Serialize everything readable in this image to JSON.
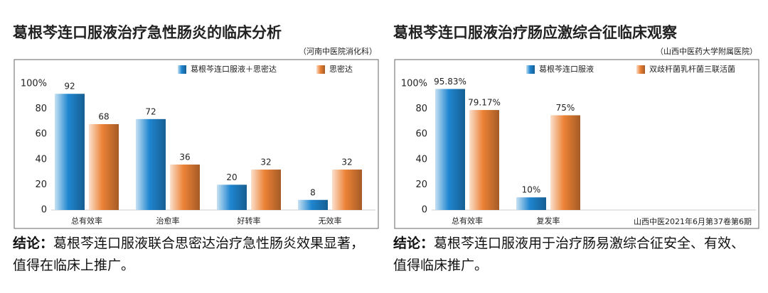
{
  "chart_data": [
    {
      "type": "bar",
      "title": "葛根芩连口服液治疗急性肠炎的临床分析",
      "source": "（河南中医院消化科）",
      "categories": [
        "总有效率",
        "治愈率",
        "好转率",
        "无效率"
      ],
      "series": [
        {
          "name": "葛根芩连口服液＋思密达",
          "color": "#1f86d0",
          "values": [
            92,
            72,
            20,
            8
          ]
        },
        {
          "name": "思密达",
          "color": "#ec8236",
          "values": [
            68,
            36,
            32,
            32
          ]
        }
      ],
      "ylim": [
        0,
        100
      ],
      "yticks": [
        0,
        20,
        40,
        60,
        80,
        {
          "value": 100,
          "label": "100%"
        }
      ],
      "conclusion_label": "结论：",
      "conclusion": "葛根芩连口服液联合思密达治疗急性肠炎效果显著，值得在临床上推广。"
    },
    {
      "type": "bar",
      "title": "葛根芩连口服液治疗肠应激综合征临床观察",
      "source": "（山西中医药大学附属医院）",
      "annotation": "山西中医2021年6月第37卷第6期",
      "categories": [
        "总有效率",
        "复发率"
      ],
      "series": [
        {
          "name": "葛根芩连口服液",
          "color": "#1f86d0",
          "values": [
            95.83,
            10
          ],
          "value_labels": [
            "95.83%",
            "10%"
          ]
        },
        {
          "name": "双歧杆菌乳杆菌三联活菌",
          "color": "#ec8236",
          "values": [
            79.17,
            75
          ],
          "value_labels": [
            "79.17%",
            "75%"
          ]
        }
      ],
      "ylim": [
        0,
        100
      ],
      "yticks": [
        0,
        20,
        40,
        60,
        80,
        {
          "value": 100,
          "label": "100%"
        }
      ],
      "conclusion_label": "结论：",
      "conclusion": "葛根芩连口服液用于治疗肠易激综合征安全、有效、值得临床推广。"
    }
  ]
}
